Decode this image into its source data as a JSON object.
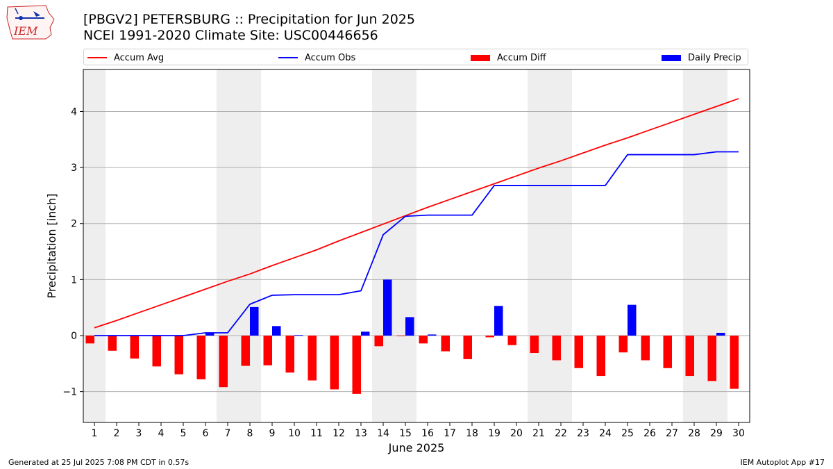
{
  "logo": {
    "text": "IEM",
    "icon": "iowa-state-logo-icon"
  },
  "title_line1": "[PBGV2] PETERSBURG :: Precipitation for Jun 2025",
  "title_line2": "NCEI 1991-2020 Climate Site: USC00446656",
  "footer_left": "Generated at 25 Jul 2025 7:08 PM CDT in 0.57s",
  "footer_right": "IEM Autoplot App #17",
  "colors": {
    "avg": "#ff0000",
    "obs": "#0000ff",
    "diff": "#ff0000",
    "daily": "#0000ff",
    "weekend": "#eeeeee",
    "grid": "#b0b0b0"
  },
  "chart_data": {
    "type": "bar",
    "xlabel": "June 2025",
    "ylabel": "Precipitation [inch]",
    "ylim": [
      -1.55,
      4.75
    ],
    "xlim": [
      0.5,
      30.5
    ],
    "yticks": [
      -1,
      0,
      1,
      2,
      3,
      4
    ],
    "ytick_labels": [
      "−1",
      "0",
      "1",
      "2",
      "3",
      "4"
    ],
    "days": [
      1,
      2,
      3,
      4,
      5,
      6,
      7,
      8,
      9,
      10,
      11,
      12,
      13,
      14,
      15,
      16,
      17,
      18,
      19,
      20,
      21,
      22,
      23,
      24,
      25,
      26,
      27,
      28,
      29,
      30
    ],
    "weekend_spans": [
      [
        0.5,
        1.5
      ],
      [
        6.5,
        8.5
      ],
      [
        13.5,
        15.5
      ],
      [
        20.5,
        22.5
      ],
      [
        27.5,
        29.5
      ]
    ],
    "grid": true,
    "legend_position": "top",
    "series": [
      {
        "name": "Accum Avg",
        "kind": "line",
        "values": [
          0.14,
          0.27,
          0.41,
          0.55,
          0.69,
          0.83,
          0.97,
          1.1,
          1.25,
          1.39,
          1.53,
          1.69,
          1.84,
          1.99,
          2.14,
          2.29,
          2.43,
          2.57,
          2.71,
          2.85,
          2.99,
          3.12,
          3.26,
          3.4,
          3.53,
          3.67,
          3.81,
          3.95,
          4.09,
          4.23
        ]
      },
      {
        "name": "Accum Obs",
        "kind": "line",
        "values": [
          0,
          0,
          0,
          0,
          0,
          0.05,
          0.05,
          0.56,
          0.72,
          0.73,
          0.73,
          0.73,
          0.8,
          1.8,
          2.13,
          2.15,
          2.15,
          2.15,
          2.68,
          2.68,
          2.68,
          2.68,
          2.68,
          2.68,
          3.23,
          3.23,
          3.23,
          3.23,
          3.28,
          3.28
        ]
      },
      {
        "name": "Accum Diff",
        "kind": "bar",
        "values": [
          -0.14,
          -0.27,
          -0.41,
          -0.55,
          -0.69,
          -0.78,
          -0.92,
          -0.54,
          -0.53,
          -0.66,
          -0.8,
          -0.96,
          -1.04,
          -0.19,
          -0.01,
          -0.14,
          -0.28,
          -0.42,
          -0.03,
          -0.17,
          -0.31,
          -0.44,
          -0.58,
          -0.72,
          -0.3,
          -0.44,
          -0.58,
          -0.72,
          -0.81,
          -0.95
        ]
      },
      {
        "name": "Daily Precip",
        "kind": "bar",
        "values": [
          0,
          0,
          0,
          0,
          0,
          0.05,
          0,
          0.51,
          0.17,
          0.01,
          0,
          0,
          0.07,
          1.0,
          0.33,
          0.02,
          0,
          0,
          0.53,
          0,
          0,
          0,
          0,
          0,
          0.55,
          0,
          0,
          0,
          0.05,
          0
        ]
      }
    ]
  }
}
